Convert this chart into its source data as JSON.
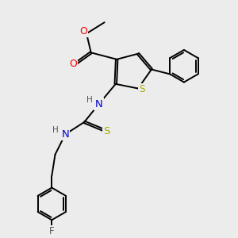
{
  "background_color": "#ececec",
  "figsize": [
    3.0,
    3.0
  ],
  "dpi": 100,
  "colors": {
    "C": "#000000",
    "N": "#0000cc",
    "O": "#ff0000",
    "S": "#aaaa00",
    "F": "#555555",
    "H": "#555555",
    "bond": "#000000"
  },
  "bond_lw": 1.4,
  "font_size": 8.5,
  "xlim": [
    0,
    10
  ],
  "ylim": [
    0,
    10
  ]
}
